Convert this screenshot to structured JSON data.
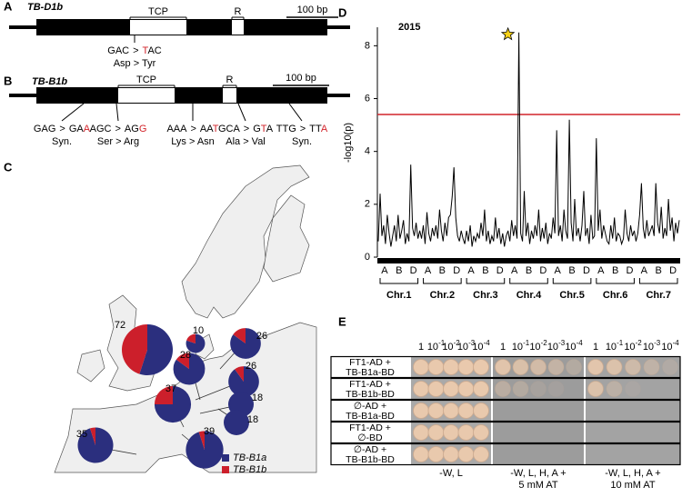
{
  "separator": ">",
  "panels": {
    "A": {
      "label": "A",
      "gene": "TB-D1b",
      "domains": [
        "TCP",
        "R"
      ],
      "scale_bar": "100 bp",
      "mutations": [
        {
          "from": "GAC",
          "to": [
            "T",
            "AC"
          ],
          "changed": [
            true,
            false
          ],
          "effect": "Asp > Tyr"
        }
      ]
    },
    "B": {
      "label": "B",
      "gene": "TB-B1b",
      "domains": [
        "TCP",
        "R"
      ],
      "scale_bar": "100 bp",
      "mutations": [
        {
          "from": "GAG",
          "to": [
            "GA",
            "A"
          ],
          "changed": [
            false,
            true
          ],
          "effect": "Syn."
        },
        {
          "from": "AGC",
          "to": [
            "AG",
            "G"
          ],
          "changed": [
            false,
            true
          ],
          "effect": "Ser > Arg"
        },
        {
          "from": "AAA",
          "to": [
            "AA",
            "T"
          ],
          "changed": [
            false,
            true
          ],
          "effect": "Lys > Asn"
        },
        {
          "from": "GCA",
          "to": [
            "G",
            "T",
            "A"
          ],
          "changed": [
            false,
            true,
            false
          ],
          "effect": "Ala > Val"
        },
        {
          "from": "TTG",
          "to": [
            "TT",
            "A"
          ],
          "changed": [
            false,
            true
          ],
          "effect": "Syn."
        }
      ]
    },
    "C": {
      "label": "C",
      "legend": [
        "TB-B1a",
        "TB-B1b"
      ],
      "colors": [
        "#2b2f7e",
        "#cc1f2b"
      ],
      "sites": [
        {
          "n": 72,
          "shares": [
            55,
            45
          ]
        },
        {
          "n": 10,
          "shares": [
            80,
            20
          ]
        },
        {
          "n": 28,
          "shares": [
            85,
            15
          ]
        },
        {
          "n": 37,
          "shares": [
            75,
            25
          ]
        },
        {
          "n": 26,
          "shares": [
            85,
            15
          ]
        },
        {
          "n": 26,
          "shares": [
            90,
            10
          ]
        },
        {
          "n": 18,
          "shares": [
            100,
            0
          ]
        },
        {
          "n": 18,
          "shares": [
            100,
            0
          ]
        },
        {
          "n": 35,
          "shares": [
            95,
            5
          ]
        },
        {
          "n": 39,
          "shares": [
            95,
            5
          ]
        }
      ]
    },
    "D": {
      "label": "D",
      "chart_data": {
        "type": "line",
        "title": "2015",
        "ylabel": "-log10(p)",
        "color": "#000000",
        "ylim": [
          0,
          8.7
        ],
        "yticks": [
          0,
          2,
          4,
          6,
          8
        ],
        "threshold": 5.4,
        "threshold_color": "#d2232a",
        "categories": [
          "A",
          "B",
          "D",
          "A",
          "B",
          "D",
          "A",
          "B",
          "D",
          "A",
          "B",
          "D",
          "A",
          "B",
          "D",
          "A",
          "B",
          "D",
          "A",
          "B",
          "D"
        ],
        "chromosomes": [
          "Chr.1",
          "Chr.2",
          "Chr.3",
          "Chr.4",
          "Chr.5",
          "Chr.6",
          "Chr.7"
        ],
        "values": [
          [
            0.6,
            2.4,
            0.8,
            1.2,
            0.5,
            1.6,
            0.9,
            0.4
          ],
          [
            0.8,
            1.2,
            0.6,
            1.6,
            0.7,
            1.0,
            1.4,
            0.5
          ],
          [
            0.9,
            0.6,
            3.5,
            1.1,
            0.8,
            1.3,
            0.7,
            1.0
          ],
          [
            0.7,
            1.2,
            0.5,
            1.7,
            0.9,
            0.6,
            1.1,
            0.8
          ],
          [
            1.2,
            0.7,
            1.8,
            1.0,
            0.6,
            1.3,
            0.8,
            1.5
          ],
          [
            1.6,
            2.3,
            3.4,
            1.5,
            0.8,
            0.6,
            1.0,
            0.7
          ],
          [
            0.5,
            1.0,
            0.6,
            1.2,
            0.4,
            0.8,
            0.6,
            0.9
          ],
          [
            0.7,
            1.3,
            0.8,
            1.8,
            0.6,
            1.0,
            0.5,
            0.8
          ],
          [
            0.6,
            1.5,
            0.7,
            1.1,
            0.5,
            0.9,
            0.4,
            0.8
          ],
          [
            1.0,
            0.6,
            1.4,
            0.8,
            1.2,
            0.7,
            8.5,
            0.9
          ],
          [
            0.6,
            2.5,
            0.8,
            1.3,
            0.5,
            1.0,
            0.7,
            1.2
          ],
          [
            0.8,
            1.8,
            0.6,
            1.1,
            0.7,
            1.3,
            0.5,
            0.9
          ],
          [
            0.7,
            1.5,
            0.9,
            4.8,
            0.8,
            1.2,
            0.6,
            1.8
          ],
          [
            1.0,
            0.7,
            5.2,
            1.3,
            0.6,
            2.2,
            0.8,
            1.1
          ],
          [
            0.6,
            1.2,
            2.5,
            0.8,
            1.1,
            0.5,
            1.6,
            0.7
          ],
          [
            0.8,
            4.5,
            1.0,
            1.8,
            0.7,
            1.2,
            0.9,
            0.6
          ],
          [
            0.5,
            1.2,
            0.7,
            1.5,
            0.6,
            0.9,
            0.8,
            0.5
          ],
          [
            0.7,
            1.8,
            0.9,
            0.6,
            1.2,
            0.8,
            1.0,
            0.6
          ],
          [
            0.9,
            1.6,
            2.8,
            1.1,
            0.7,
            1.4,
            0.8,
            1.0
          ],
          [
            1.2,
            0.8,
            2.8,
            1.3,
            0.9,
            1.9,
            0.7,
            1.1
          ],
          [
            0.8,
            2.2,
            1.0,
            1.5,
            0.6,
            1.3,
            0.9,
            1.4
          ]
        ]
      }
    },
    "E": {
      "label": "E",
      "dilutions": [
        {
          "base": "1"
        },
        {
          "base": "10",
          "sup": "-1"
        },
        {
          "base": "10",
          "sup": "-2"
        },
        {
          "base": "10",
          "sup": "-3"
        },
        {
          "base": "10",
          "sup": "-4"
        }
      ],
      "rows": [
        [
          "FT1-AD +",
          "TB-B1a-BD"
        ],
        [
          "FT1-AD +",
          "TB-B1b-BD"
        ],
        [
          "∅-AD +",
          "TB-B1a-BD"
        ],
        [
          "FT1-AD +",
          "∅-BD"
        ],
        [
          "∅-AD +",
          "TB-B1b-BD"
        ]
      ],
      "conditions": [
        [
          "-W, L"
        ],
        [
          "-W, L, H, A +",
          "5 mM AT"
        ],
        [
          "-W, L, H, A +",
          "10 mM AT"
        ]
      ]
    }
  }
}
